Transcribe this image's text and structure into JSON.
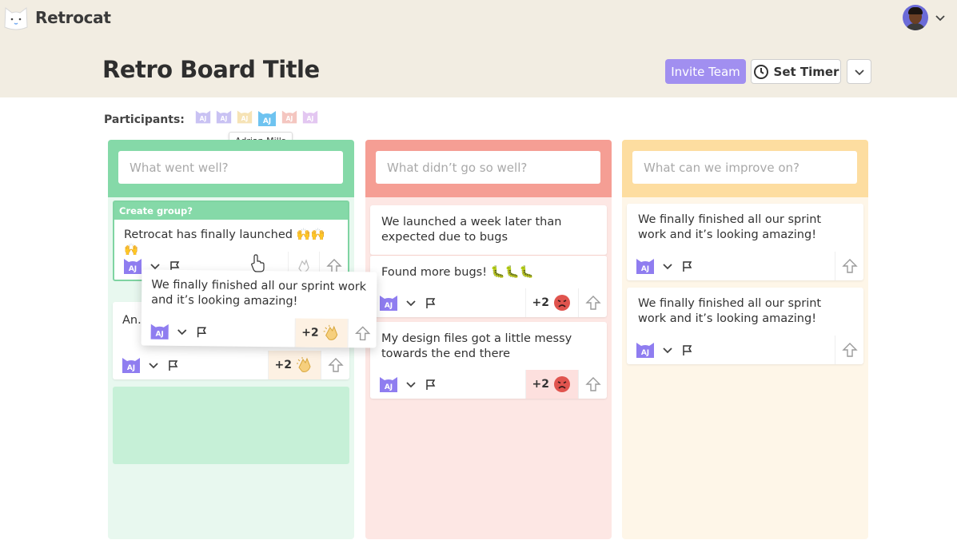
{
  "app": {
    "name": "Retrocat"
  },
  "board": {
    "title": "Retro Board Title"
  },
  "header": {
    "invite_label": "Invite Team",
    "timer_label": "Set Timer"
  },
  "participants": {
    "label": "Participants:",
    "avatars": [
      {
        "initials": "AJ",
        "color": "#c9c2f3"
      },
      {
        "initials": "AJ",
        "color": "#c9c2f3"
      },
      {
        "initials": "AJ",
        "color": "#f6e3b6"
      },
      {
        "initials": "AJ",
        "color": "#6ec3f0"
      },
      {
        "initials": "AJ",
        "color": "#f4c6c0"
      },
      {
        "initials": "AJ",
        "color": "#e3c7f1"
      }
    ],
    "tooltip": "Adrian Mills"
  },
  "columns": [
    {
      "placeholder": "What went well?",
      "group_label": "Create group?",
      "cards": [
        {
          "text": "Retrocat has finally launched 🙌🙌🙌"
        },
        {
          "text": "An... Ku...",
          "count": "+2"
        }
      ]
    },
    {
      "placeholder": "What didn’t go so well?",
      "cards": [
        {
          "text": "We launched a week later than expected due to bugs"
        },
        {
          "text": "Found more bugs! 🐛🐛🐛",
          "count": "+2"
        },
        {
          "text": "My design files got a little messy towards the end there",
          "count": "+2"
        }
      ]
    },
    {
      "placeholder": "What can we improve on?",
      "cards": [
        {
          "text": "We finally finished all our sprint work and it’s looking amazing!"
        },
        {
          "text": "We finally finished all our sprint work and it’s looking amazing!"
        }
      ]
    }
  ],
  "dragging_card": {
    "text": "We finally finished all our sprint work and it’s looking amazing!",
    "count": "+2"
  },
  "card_avatar_initials": "AJ",
  "colors": {
    "accent": "#a18ff0",
    "went_well": "#85d9a8",
    "not_well": "#f59e94",
    "improve": "#fddda0"
  }
}
